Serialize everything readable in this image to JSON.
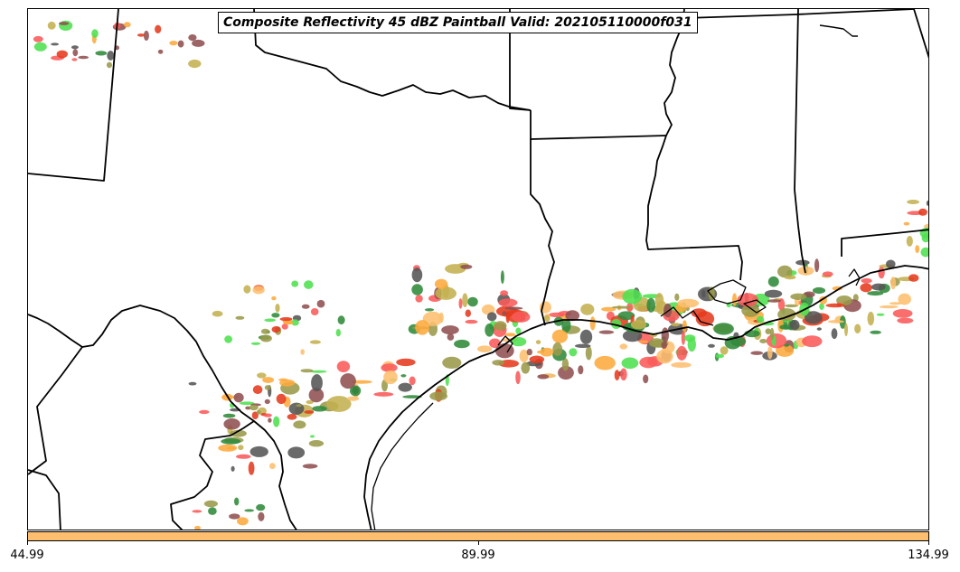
{
  "title": "Composite Reflectivity 45 dBZ Paintball Valid: 202105110000f031",
  "colorbar": {
    "color": "#fdbf6f",
    "ticks": [
      "44.99",
      "89.99",
      "134.99"
    ]
  },
  "palette": [
    "#fb5a5a",
    "#4fe04f",
    "#fdaa3d",
    "#fdbf6f",
    "#8f5050",
    "#9a9a4a",
    "#c4b050",
    "#555555",
    "#e53a1c",
    "#2f8a3a"
  ]
}
